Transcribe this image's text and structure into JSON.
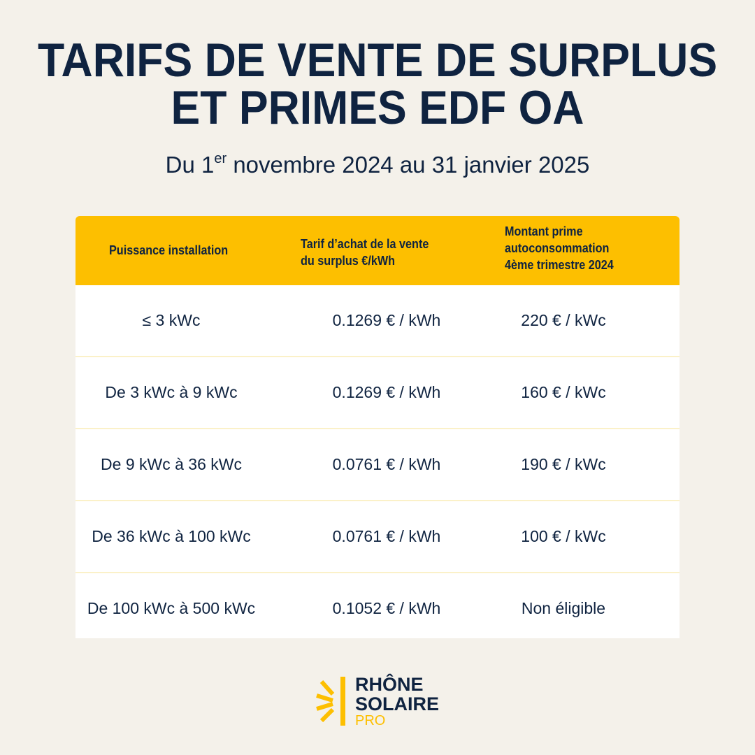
{
  "title": {
    "line1": "TARIFS DE VENTE DE SURPLUS",
    "line2": "ET PRIMES EDF OA"
  },
  "subtitle": {
    "prefix": "Du  1",
    "sup": "er",
    "suffix": " novembre 2024 au 31 janvier 2025"
  },
  "table": {
    "headers": [
      [
        "Puissance installation"
      ],
      [
        "Tarif d’achat de la vente",
        "du surplus €/kWh"
      ],
      [
        "Montant prime",
        "autoconsommation",
        "4ème trimestre 2024"
      ]
    ],
    "rows": [
      [
        "≤ 3 kWc",
        "0.1269 € / kWh",
        "220 € / kWc"
      ],
      [
        "De 3  kWc à 9 kWc",
        "0.1269 € / kWh",
        "160 € / kWc"
      ],
      [
        "De 9 kWc à 36 kWc",
        "0.0761 € / kWh",
        "190 € / kWc"
      ],
      [
        "De 36 kWc à 100 kWc",
        "0.0761 € / kWh",
        "100 € / kWc"
      ],
      [
        "De 100 kWc à 500 kWc",
        "0.1052 € / kWh",
        "Non éligible"
      ]
    ]
  },
  "logo": {
    "line1": "RHÔNE",
    "line2": "SOLAIRE",
    "line3": "PRO"
  },
  "colors": {
    "background": "#f4f1ea",
    "navy": "#0f2340",
    "yellow": "#fdbf00"
  }
}
